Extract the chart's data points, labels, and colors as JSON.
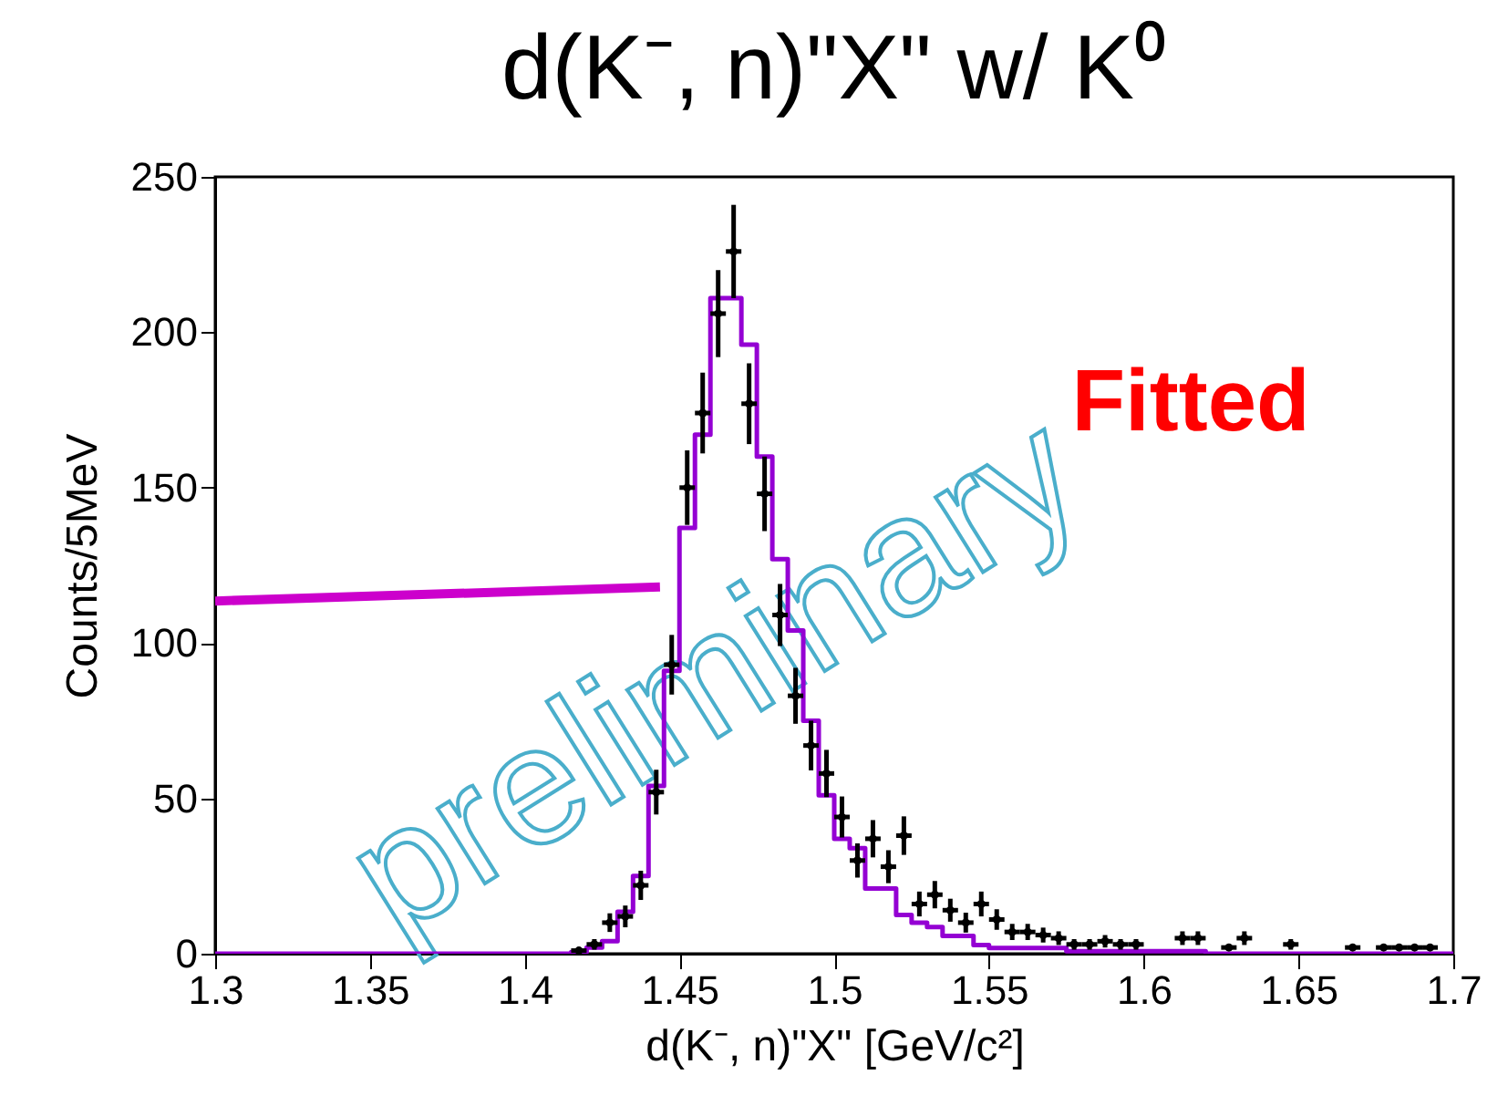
{
  "chart_data": {
    "type": "scatter",
    "title": "d(K⁻, n)\"X\" w/ K⁰",
    "xlabel": "d(K⁻, n)\"X\" [GeV/c²]",
    "ylabel": "Counts/5MeV",
    "xlim": [
      1.3,
      1.7
    ],
    "xticks": [
      1.3,
      1.35,
      1.4,
      1.45,
      1.5,
      1.55,
      1.6,
      1.65,
      1.7
    ],
    "ylim": [
      0,
      250
    ],
    "yticks": [
      0,
      50,
      100,
      150,
      200,
      250
    ],
    "annotations": [
      "Fitted",
      "preliminary"
    ],
    "series": [
      {
        "type": "step",
        "color": "#9400d3",
        "x": [
          1.3,
          1.415,
          1.42,
          1.425,
          1.43,
          1.435,
          1.44,
          1.445,
          1.45,
          1.455,
          1.46,
          1.465,
          1.47,
          1.475,
          1.48,
          1.485,
          1.49,
          1.495,
          1.5,
          1.505,
          1.51,
          1.52,
          1.525,
          1.53,
          1.535,
          1.545,
          1.55,
          1.575,
          1.62,
          1.7
        ],
        "values": [
          0,
          0.5,
          2,
          4,
          13.5,
          25,
          54,
          91,
          137,
          167,
          211,
          211,
          196,
          160,
          127,
          104,
          75,
          51,
          37,
          34,
          21,
          12.5,
          10,
          8.6,
          5.7,
          2.8,
          1.8,
          0.8,
          0,
          0
        ]
      },
      {
        "color": "#000000",
        "x": [
          1.4175,
          1.4225,
          1.4275,
          1.4325,
          1.4375,
          1.4425,
          1.4475,
          1.4525,
          1.4575,
          1.4625,
          1.4675,
          1.4725,
          1.4775,
          1.4825,
          1.4875,
          1.4925,
          1.4975,
          1.5025,
          1.5075,
          1.5125,
          1.5175,
          1.5225,
          1.5275,
          1.5325,
          1.5375,
          1.5425,
          1.5475,
          1.5525,
          1.5575,
          1.5625,
          1.5675,
          1.5725,
          1.5775,
          1.5825,
          1.5875,
          1.5925,
          1.5975,
          1.6125,
          1.6175,
          1.6275,
          1.6325,
          1.6475,
          1.6675,
          1.6775,
          1.6825,
          1.6875,
          1.6925
        ],
        "values": [
          1,
          3,
          10,
          12,
          22,
          52,
          93,
          150,
          174,
          206,
          226,
          177,
          148,
          109,
          83,
          67,
          58,
          44,
          30,
          37,
          28,
          38,
          16,
          19,
          14,
          10,
          16,
          11,
          7,
          7,
          6,
          5,
          3,
          3,
          4,
          3,
          3,
          5,
          5,
          2,
          5,
          3,
          2,
          2,
          2,
          2,
          2
        ],
        "errors": [
          null,
          1.7,
          3,
          3.5,
          4.7,
          7.2,
          9.6,
          12,
          13,
          14,
          15,
          13,
          12,
          10,
          9,
          8,
          7.6,
          6.6,
          5.5,
          6,
          5.3,
          6.2,
          4,
          4.4,
          3.7,
          3.2,
          4,
          3.3,
          2.6,
          2.6,
          2.4,
          2.2,
          1.7,
          1.7,
          2,
          1.7,
          1.7,
          2.2,
          2.2,
          null,
          2.2,
          1.7,
          null,
          null,
          null,
          null,
          null
        ],
        "xerrors": [
          0.0025,
          0.0025,
          0.0025,
          0.0025,
          0.0025,
          0.0025,
          0.0025,
          0.0025,
          0.0025,
          0.0025,
          0.0025,
          0.0025,
          0.0025,
          0.0025,
          0.0025,
          0.0025,
          0.0025,
          0.0025,
          0.0025,
          0.0025,
          0.0025,
          0.0025,
          0.0025,
          0.0025,
          0.0025,
          0.0025,
          0.0025,
          0.0025,
          0.0025,
          0.0025,
          0.0025,
          0.0025,
          0.0025,
          0.0025,
          0.0025,
          0.0025,
          0.0025,
          0.0025,
          0.0025,
          0.0025,
          0.0025,
          0.0025,
          0.0025,
          0.0025,
          0.0025,
          0.0025,
          0.0025
        ]
      },
      {
        "type": "line",
        "color": "#cc00cc",
        "x": [
          1.3,
          1.4437
        ],
        "values": [
          113.5,
          118
        ]
      }
    ]
  }
}
